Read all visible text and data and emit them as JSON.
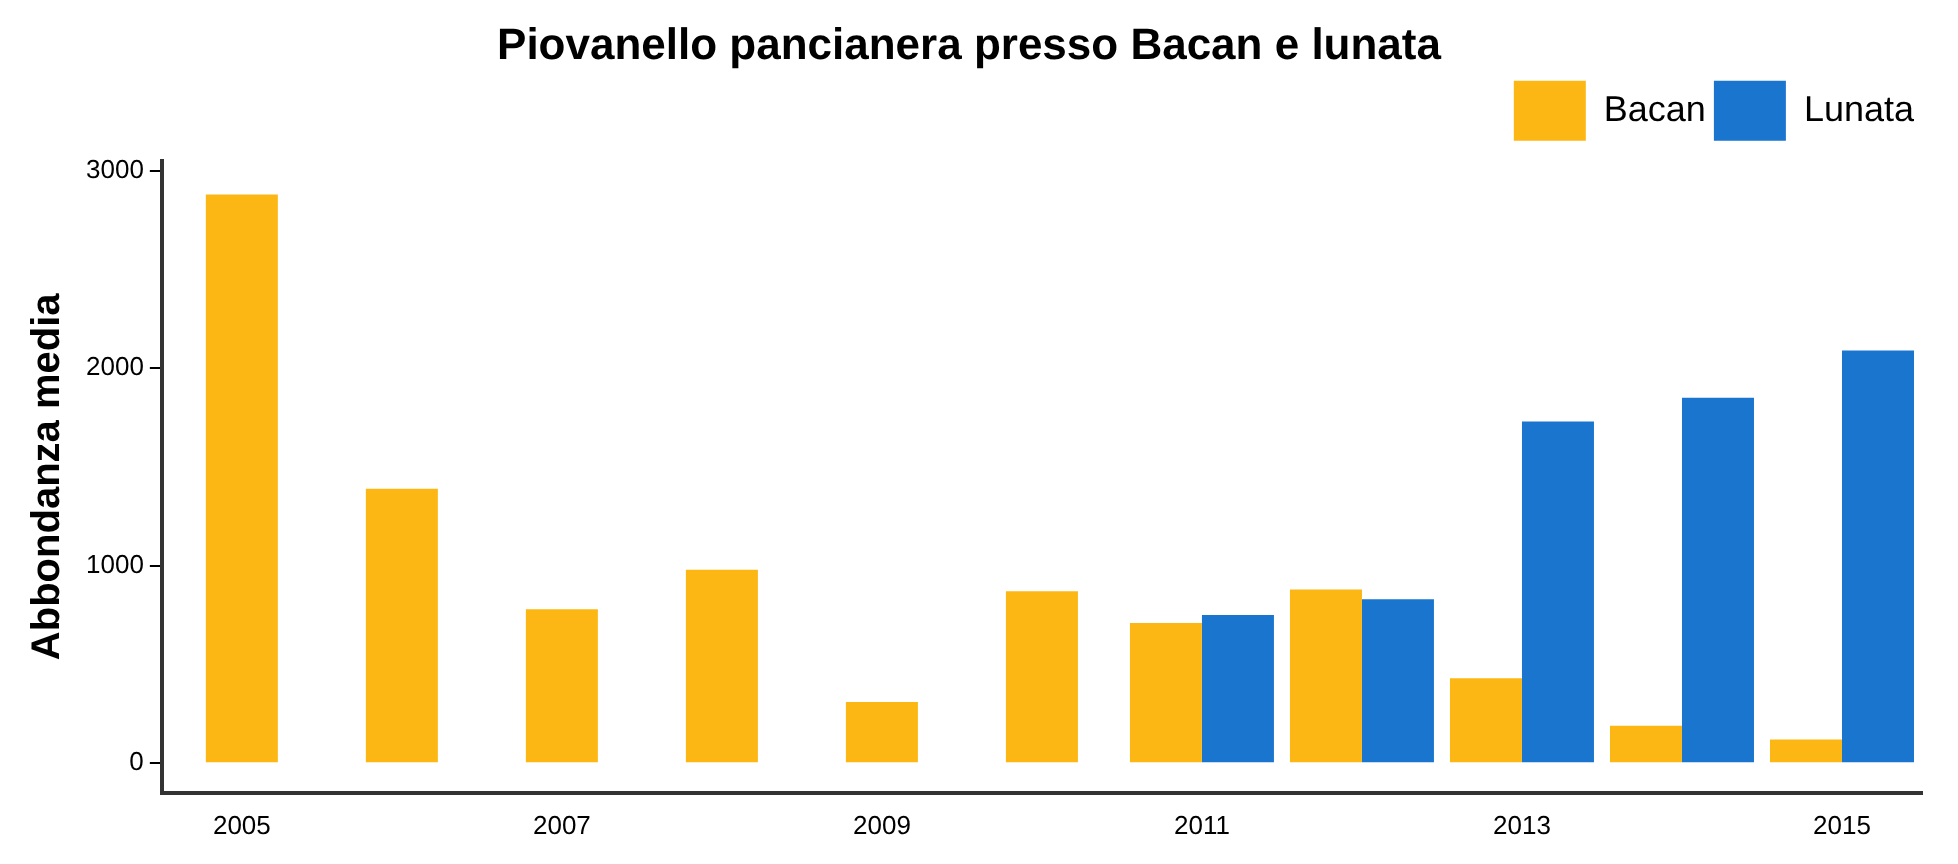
{
  "chart_data": {
    "type": "bar",
    "title": "Piovanello pancianera presso Bacan e lunata",
    "ylabel": "Abbondanza media",
    "categories": [
      "2005",
      null,
      "2007",
      null,
      "2009",
      null,
      "2011",
      null,
      "2013",
      null,
      "2015"
    ],
    "series": [
      {
        "name": "Bacan",
        "color": "#fdb714",
        "values": [
          2880,
          1390,
          780,
          980,
          310,
          870,
          710,
          880,
          430,
          190,
          120
        ]
      },
      {
        "name": "Lunata",
        "color": "#1a75cf",
        "values": [
          null,
          null,
          null,
          null,
          null,
          null,
          750,
          830,
          1730,
          1850,
          2090
        ]
      }
    ],
    "ylim": [
      -150,
      3050
    ],
    "yticks": [
      0,
      1000,
      2000,
      3000
    ],
    "grid": false,
    "legend": "top right"
  }
}
